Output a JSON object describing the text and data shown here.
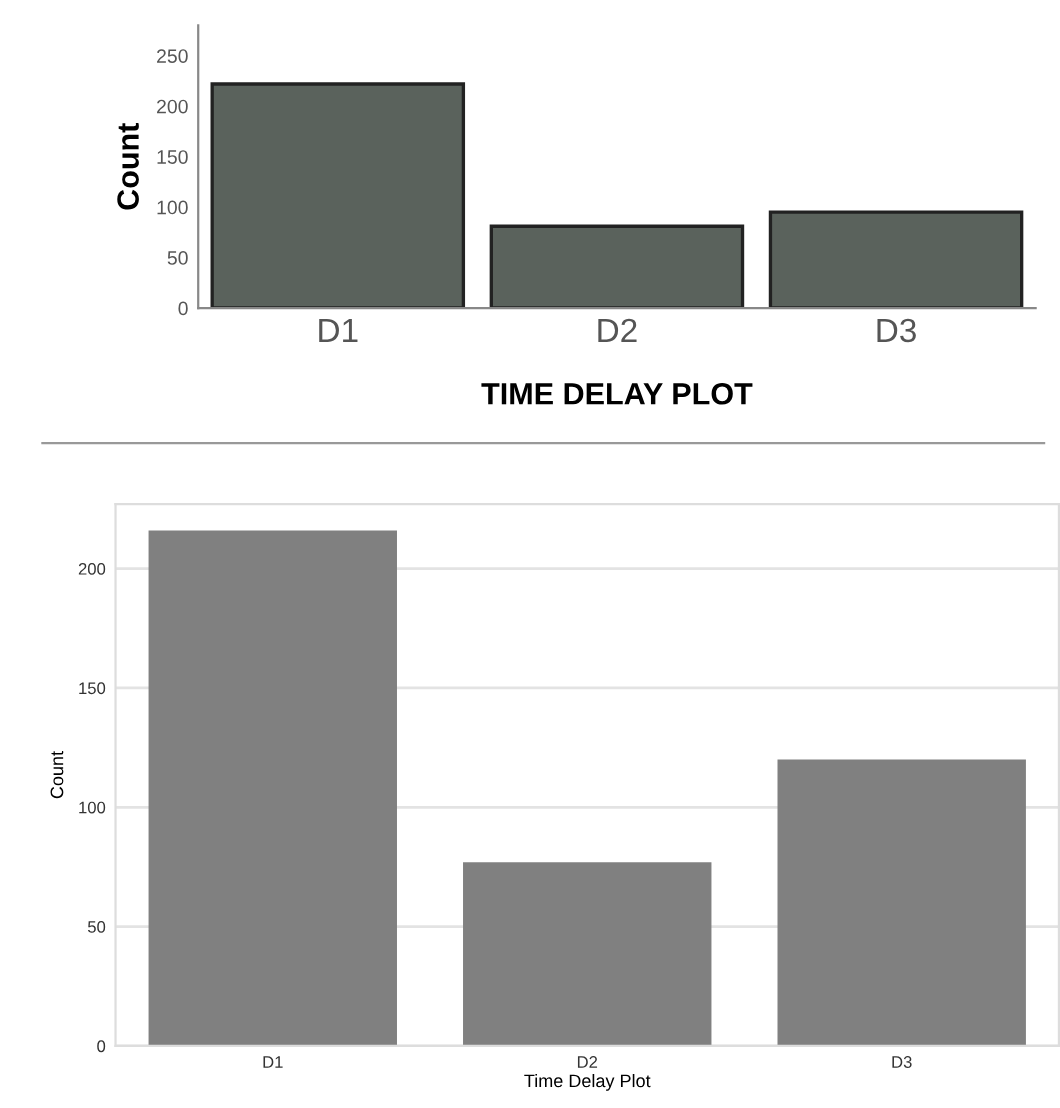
{
  "chart_data": [
    {
      "type": "bar",
      "categories": [
        "D1",
        "D2",
        "D3"
      ],
      "values": [
        222,
        81,
        95
      ],
      "color": "#5a625c",
      "xlabel": "TIME DELAY PLOT",
      "ylabel": "Count",
      "ylim": [
        0,
        280
      ],
      "yticks": [
        0,
        50,
        100,
        150,
        200,
        250
      ],
      "grid": false
    },
    {
      "type": "bar",
      "categories": [
        "D1",
        "D2",
        "D3"
      ],
      "values": [
        216,
        77,
        120
      ],
      "color": "#808080",
      "xlabel": "Time Delay Plot",
      "ylabel": "Count",
      "ylim": [
        0,
        227
      ],
      "yticks": [
        0,
        50,
        100,
        150,
        200
      ],
      "grid": "y"
    }
  ]
}
